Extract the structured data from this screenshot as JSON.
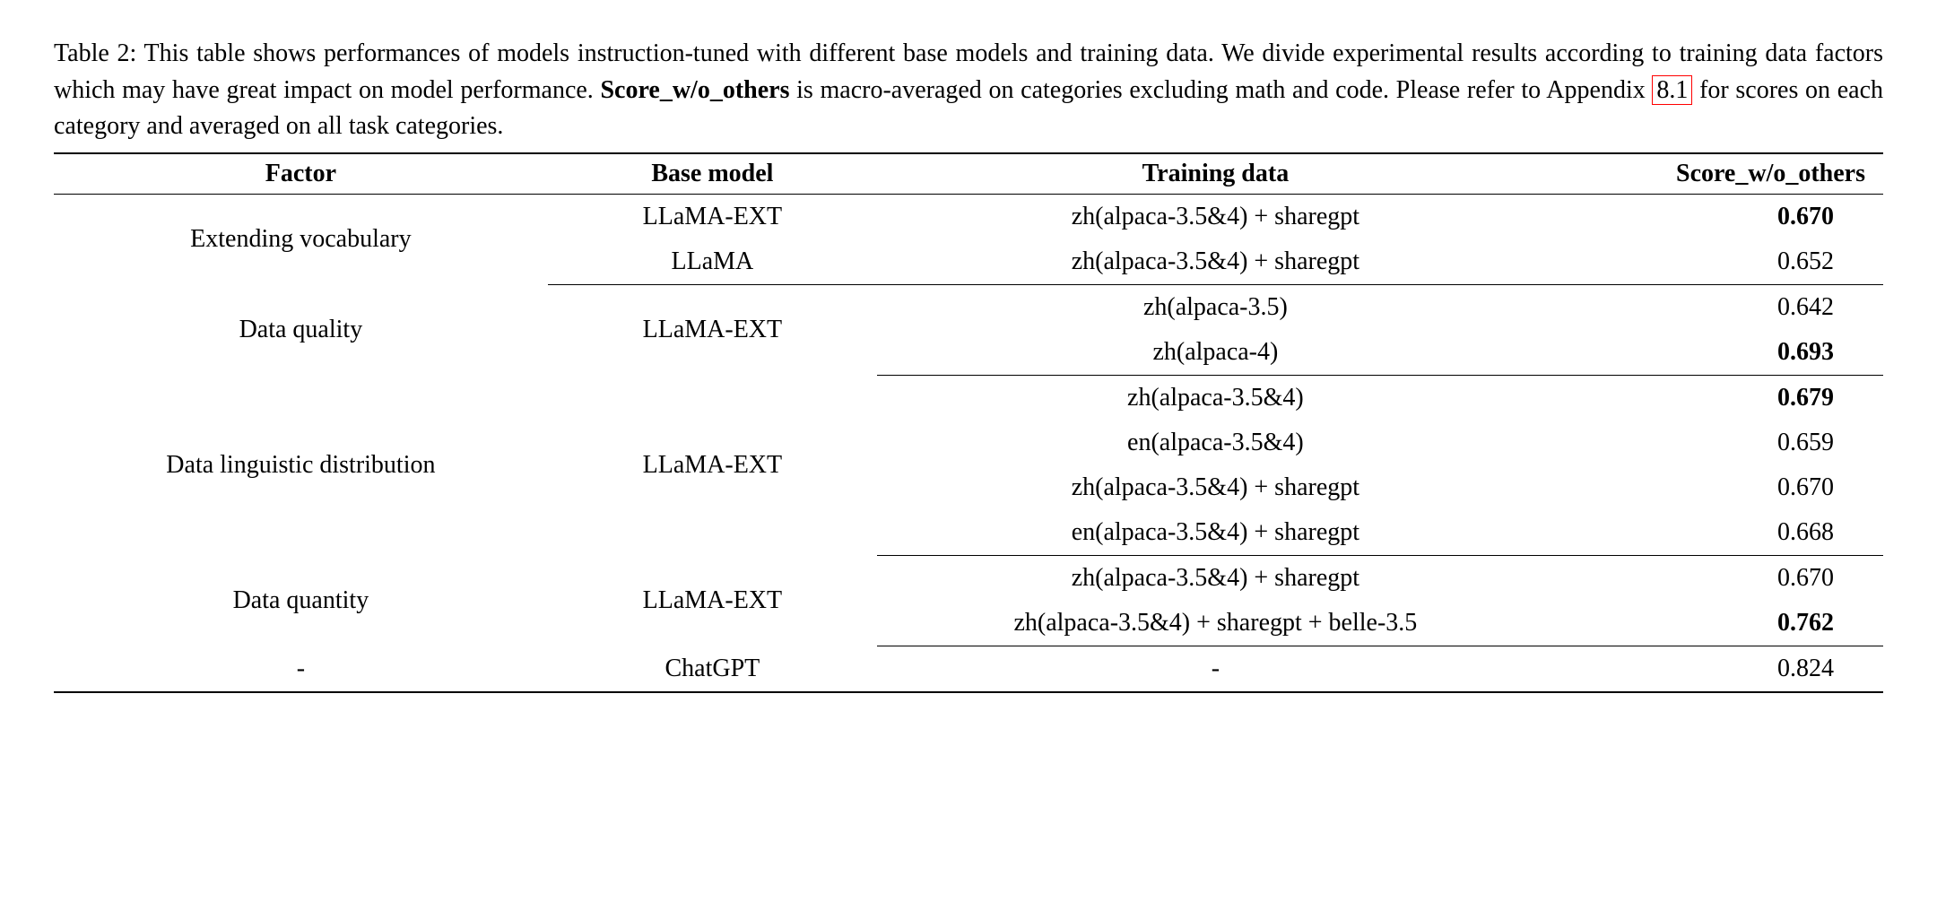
{
  "caption": {
    "prefix": "Table 2:  This table shows performances of models instruction-tuned with different base models and training data. We divide experimental results according to training data factors which may have great impact on model performance. ",
    "bold_term": "Score_w/o_others",
    "middle": " is macro-averaged on categories excluding math and code. Please refer to Appendix ",
    "ref": "8.1",
    "suffix": " for scores on each category and averaged on all task categories."
  },
  "table": {
    "headers": [
      "Factor",
      "Base model",
      "Training data",
      "Score_w/o_others"
    ],
    "sections": [
      {
        "factor": "Extending vocabulary",
        "base_model": null,
        "rows": [
          {
            "base_model": "LLaMA-EXT",
            "training_data": "zh(alpaca-3.5&4) + sharegpt",
            "score": "0.670",
            "bold": true
          },
          {
            "base_model": "LLaMA",
            "training_data": "zh(alpaca-3.5&4) + sharegpt",
            "score": "0.652",
            "bold": false
          }
        ]
      },
      {
        "factor": "Data quality",
        "base_model": "LLaMA-EXT",
        "rows": [
          {
            "training_data": "zh(alpaca-3.5)",
            "score": "0.642",
            "bold": false
          },
          {
            "training_data": "zh(alpaca-4)",
            "score": "0.693",
            "bold": true
          }
        ]
      },
      {
        "factor": "Data linguistic distribution",
        "base_model": "LLaMA-EXT",
        "rows": [
          {
            "training_data": "zh(alpaca-3.5&4)",
            "score": "0.679",
            "bold": true
          },
          {
            "training_data": "en(alpaca-3.5&4)",
            "score": "0.659",
            "bold": false
          },
          {
            "training_data": "zh(alpaca-3.5&4) + sharegpt",
            "score": "0.670",
            "bold": false
          },
          {
            "training_data": "en(alpaca-3.5&4) + sharegpt",
            "score": "0.668",
            "bold": false
          }
        ]
      },
      {
        "factor": "Data quantity",
        "base_model": "LLaMA-EXT",
        "rows": [
          {
            "training_data": "zh(alpaca-3.5&4) + sharegpt",
            "score": "0.670",
            "bold": false
          },
          {
            "training_data": "zh(alpaca-3.5&4) + sharegpt + belle-3.5",
            "score": "0.762",
            "bold": true
          }
        ]
      },
      {
        "factor": "-",
        "base_model": "ChatGPT",
        "rows": [
          {
            "training_data": "-",
            "score": "0.824",
            "bold": false
          }
        ]
      }
    ],
    "column_widths": [
      "27%",
      "18%",
      "37%",
      "18%"
    ]
  },
  "styling": {
    "font_family": "Times New Roman",
    "background_color": "#ffffff",
    "text_color": "#000000",
    "border_color": "#000000",
    "ref_border_color": "#ff0000",
    "body_fontsize": 28,
    "top_border_width": 2,
    "mid_border_width": 1.5
  }
}
